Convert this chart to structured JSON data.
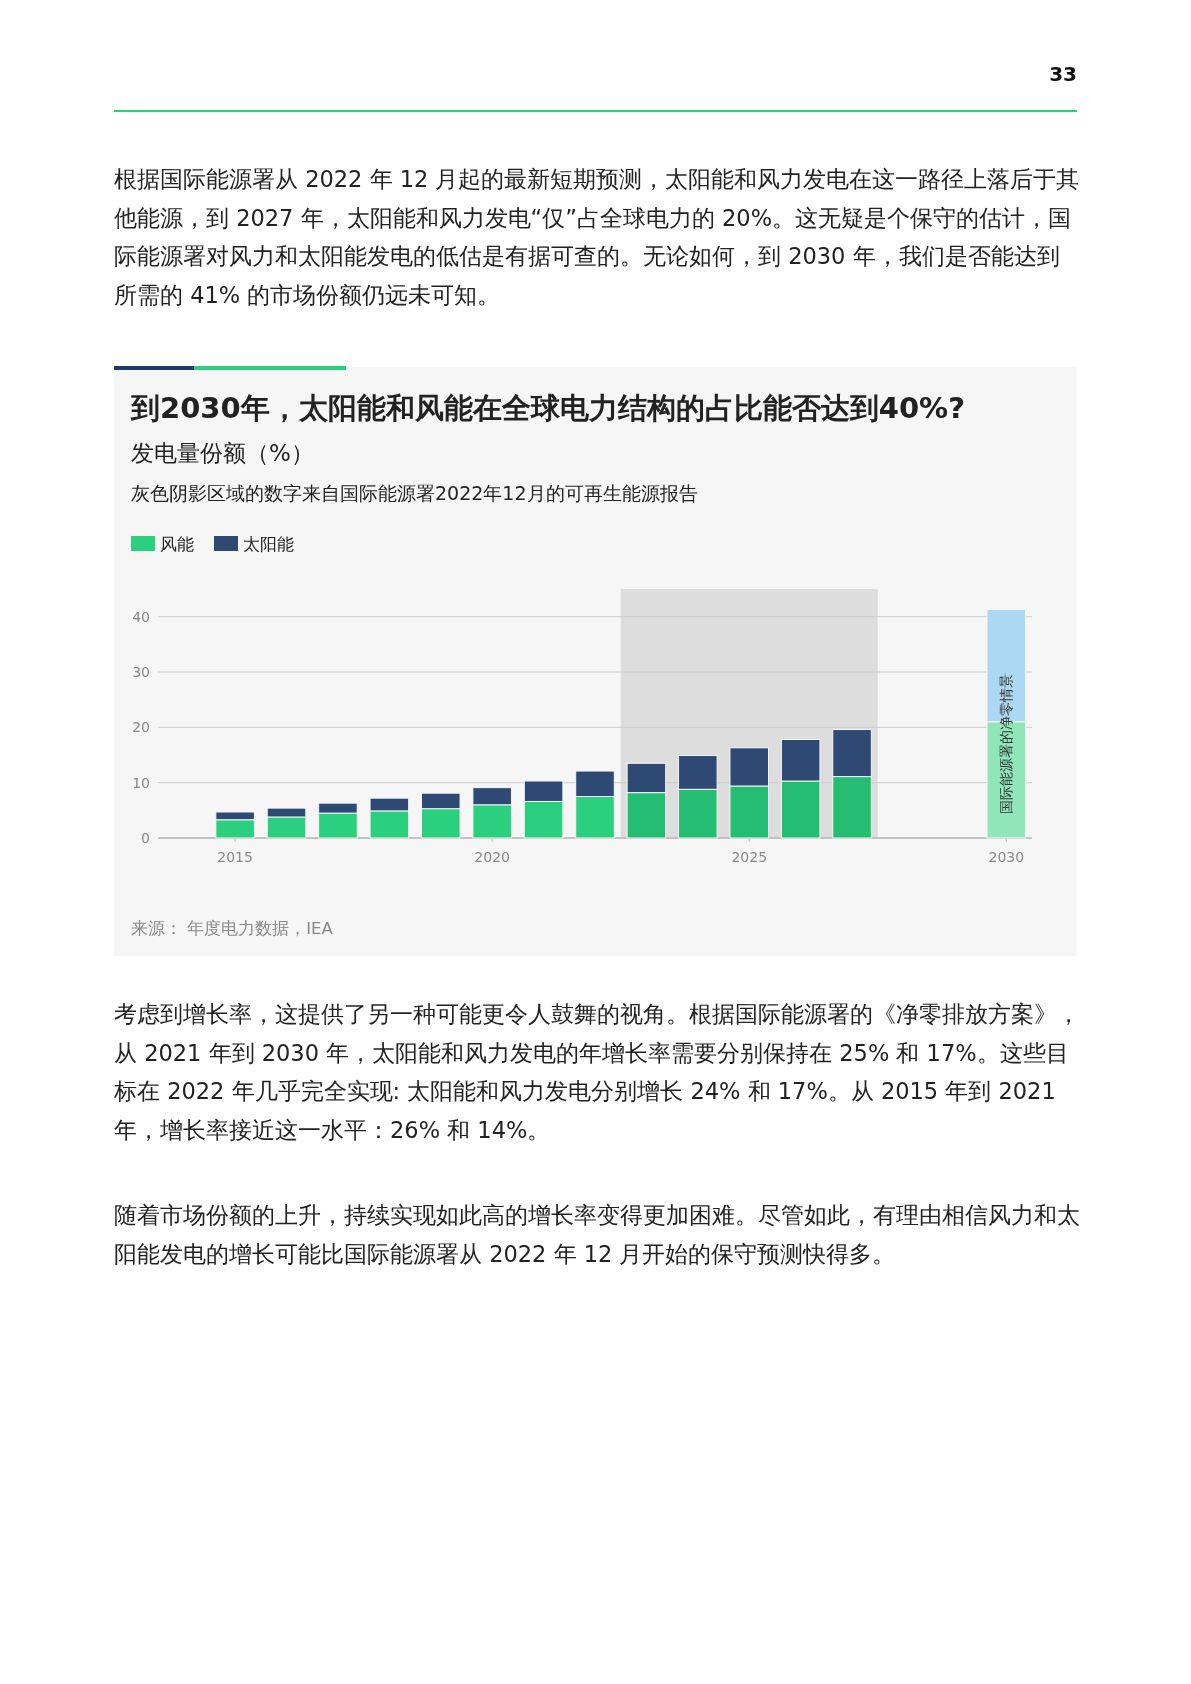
{
  "chart_data": {
    "type": "bar",
    "stacked": true,
    "title": "到2030年，太阳能和风能在全球电力结构的占比能否达到40%?",
    "subtitle": "发电量份额（%）",
    "x": [
      2015,
      2016,
      2017,
      2018,
      2019,
      2020,
      2021,
      2022,
      2023,
      2024,
      2025,
      2026,
      2027,
      2030
    ],
    "series": [
      {
        "name": "风能",
        "color": "#2ad07e",
        "colors": [
          "#2ad07e",
          "#2ad07e",
          "#2ad07e",
          "#2ad07e",
          "#2ad07e",
          "#2ad07e",
          "#2ad07e",
          "#2ad07e",
          "#25bd72",
          "#25bd72",
          "#25bd72",
          "#25bd72",
          "#25bd72",
          "#90e6b8"
        ],
        "values": [
          3.3,
          3.8,
          4.5,
          4.9,
          5.3,
          6.0,
          6.6,
          7.5,
          8.2,
          8.8,
          9.4,
          10.3,
          11.1,
          21.0
        ]
      },
      {
        "name": "太阳能",
        "color": "#2e4a74",
        "colors": [
          "#2e4a74",
          "#2e4a74",
          "#2e4a74",
          "#2e4a74",
          "#2e4a74",
          "#2e4a74",
          "#2e4a74",
          "#2e4a74",
          "#2e4a74",
          "#2e4a74",
          "#2e4a74",
          "#2e4a74",
          "#2e4a74",
          "#acd8f3"
        ],
        "values": [
          1.4,
          1.6,
          1.8,
          2.3,
          2.8,
          3.1,
          3.7,
          4.6,
          5.3,
          6.1,
          6.9,
          7.5,
          8.5,
          20.3
        ]
      }
    ],
    "xlim": [
      2013.5,
      2030.5
    ],
    "xticks": [
      2015,
      2020,
      2025,
      2030
    ],
    "ylim": [
      0,
      45
    ],
    "yticks": [
      0,
      10,
      20,
      30,
      40
    ],
    "grid": "y",
    "legend": "top left",
    "bands": [
      {
        "axis": "x",
        "from": 2022.5,
        "to": 2027.5,
        "color": "#dddddd"
      }
    ],
    "annotations": [
      "33",
      "根据国际能源署从 2022 年 12 月起的最新短期预测，太阳能和风力发电在这一路径上落后于其他能源，到 2027 年，太阳能和风力发电“仅”占全球电力的 20%。这无疑是个保守的估计，国际能源署对风力和太阳能发电的低估是有据可查的。无论如何，到 2030 年，我们是否能达到所需的 41% 的市场份额仍远未可知。",
      "灰色阴影区域的数字来自国际能源署2022年12月的可再生能源报告",
      "来源： 年度电力数据，IEA",
      "考虑到增长率，这提供了另一种可能更令人鼓舞的视角。根据国际能源署的《净零排放方案》，从 2021 年到 2030 年，太阳能和风力发电的年增长率需要分别保持在 25% 和 17%。这些目标在 2022 年几乎完全实现: 太阳能和风力发电分别增长 24% 和 17%。从 2015 年到 2021 年，增长率接近这一水平：26% 和 14%。",
      "随着市场份额的上升，持续实现如此高的增长率变得更加困难。尽管如此，有理由相信风力和太阳能发电的增长可能比国际能源署从 2022 年 12 月开始的保守预测快得多。",
      "国际能源署的净零情景"
    ]
  }
}
